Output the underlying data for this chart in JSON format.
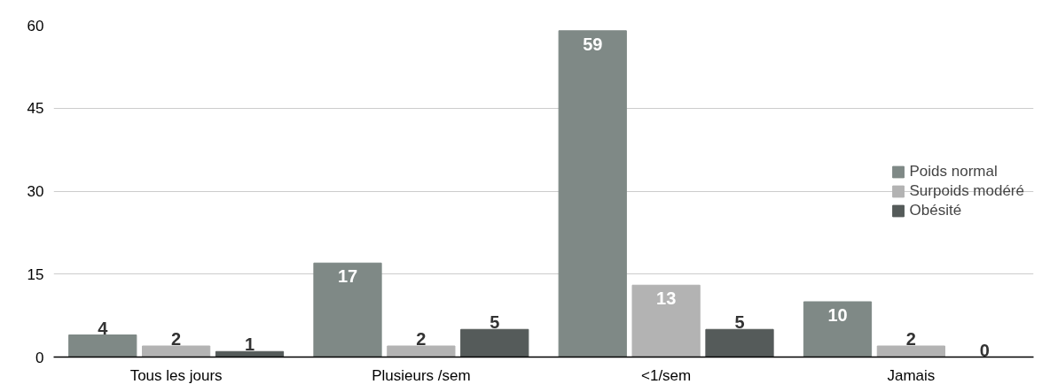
{
  "chart_data": {
    "type": "bar",
    "categories": [
      "Tous les jours",
      "Plusieurs /sem",
      "<1/sem",
      "Jamais"
    ],
    "series": [
      {
        "name": "Poids normal",
        "color": "#7f8986",
        "values": [
          4,
          17,
          59,
          10
        ]
      },
      {
        "name": "Surpoids modéré",
        "color": "#b3b3b3",
        "values": [
          2,
          2,
          13,
          2
        ]
      },
      {
        "name": "Obésité",
        "color": "#555b5a",
        "values": [
          1,
          5,
          5,
          0
        ]
      }
    ],
    "ylim": [
      0,
      60
    ],
    "yticks": [
      0,
      15,
      30,
      45,
      60
    ],
    "grid": "y",
    "legend": "right",
    "data_labels": true
  }
}
